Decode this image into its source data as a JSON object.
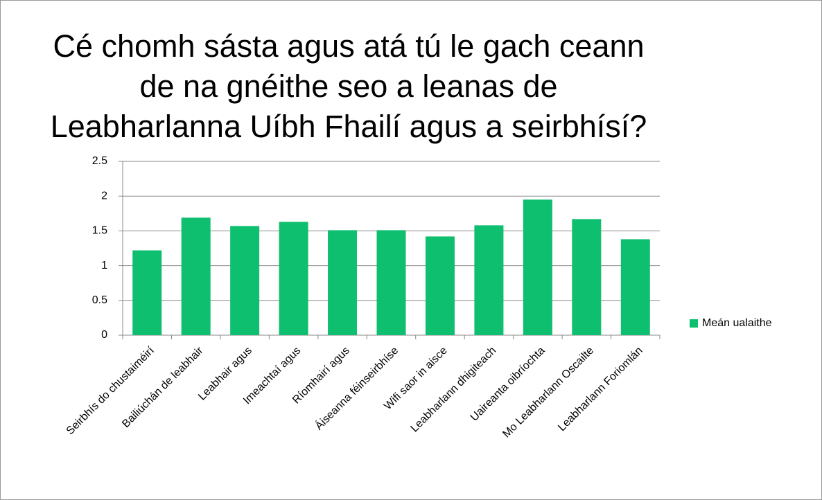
{
  "chart_data": {
    "type": "bar",
    "title": [
      "Cé chomh sásta agus atá tú le gach ceann",
      "de na gnéithe seo a leanas de",
      "Leabharlanna Uíbh Fhailí agus a seirbhísí?"
    ],
    "categories": [
      "Seirbhís do chustaiméirí",
      "Bailiúchán de leabhair",
      "Leabhair agus",
      "Imeachtaí agus",
      "Ríomhairí agus",
      "Áiseanna féinseirbhíse",
      "Wifi saor in aisce",
      "Leabharlann dhigiteach",
      "Uaireanta oibríochta",
      "Mo Leabharlann Oscailte",
      "Leabharlann Foriomlán"
    ],
    "series": [
      {
        "name": "Meán ualaithe",
        "color": "#0dbf6e",
        "values": [
          1.22,
          1.69,
          1.57,
          1.63,
          1.51,
          1.51,
          1.42,
          1.58,
          1.95,
          1.67,
          1.38
        ]
      }
    ],
    "ylim": [
      0,
      2.5
    ],
    "yticks": [
      0,
      0.5,
      1,
      1.5,
      2,
      2.5
    ],
    "grid": true,
    "legend": "right"
  }
}
